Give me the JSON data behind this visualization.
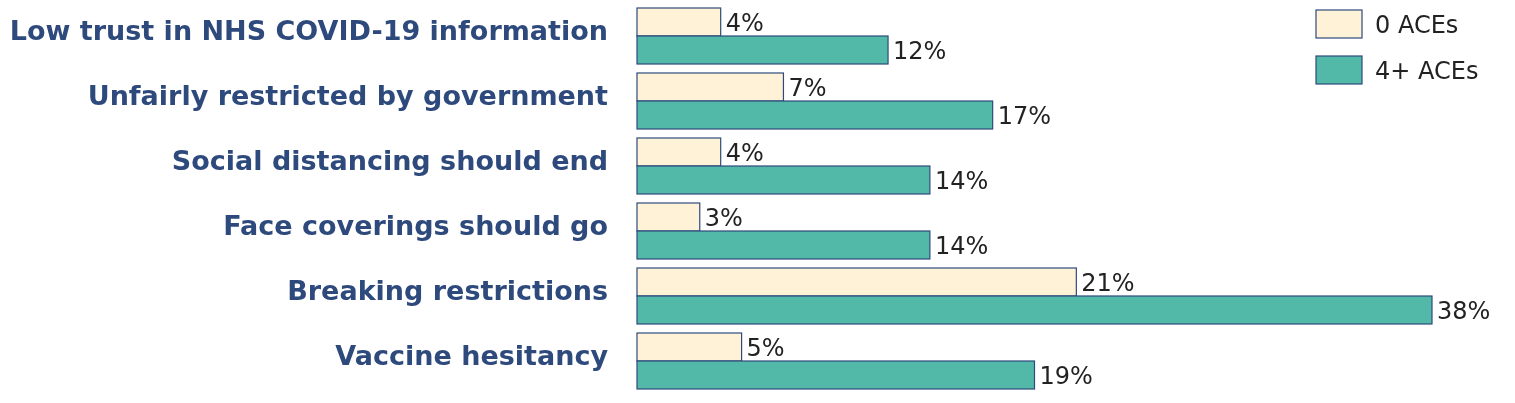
{
  "chart_data": {
    "type": "bar",
    "orientation": "horizontal",
    "categories": [
      "Low trust in NHS COVID-19 information",
      "Unfairly restricted by government",
      "Social distancing should end",
      "Face coverings should go",
      "Breaking restrictions",
      "Vaccine hesitancy"
    ],
    "series": [
      {
        "name": "0 ACEs",
        "color": "#fff2d6",
        "values": [
          4,
          7,
          4,
          3,
          21,
          5
        ],
        "value_labels": [
          "4%",
          "7%",
          "4%",
          "3%",
          "21%",
          "5%"
        ]
      },
      {
        "name": "4+ ACEs",
        "color": "#52b9a8",
        "values": [
          12,
          17,
          14,
          14,
          38,
          19
        ],
        "value_labels": [
          "12%",
          "17%",
          "14%",
          "14%",
          "38%",
          "19%"
        ]
      }
    ],
    "legend": "top right"
  }
}
